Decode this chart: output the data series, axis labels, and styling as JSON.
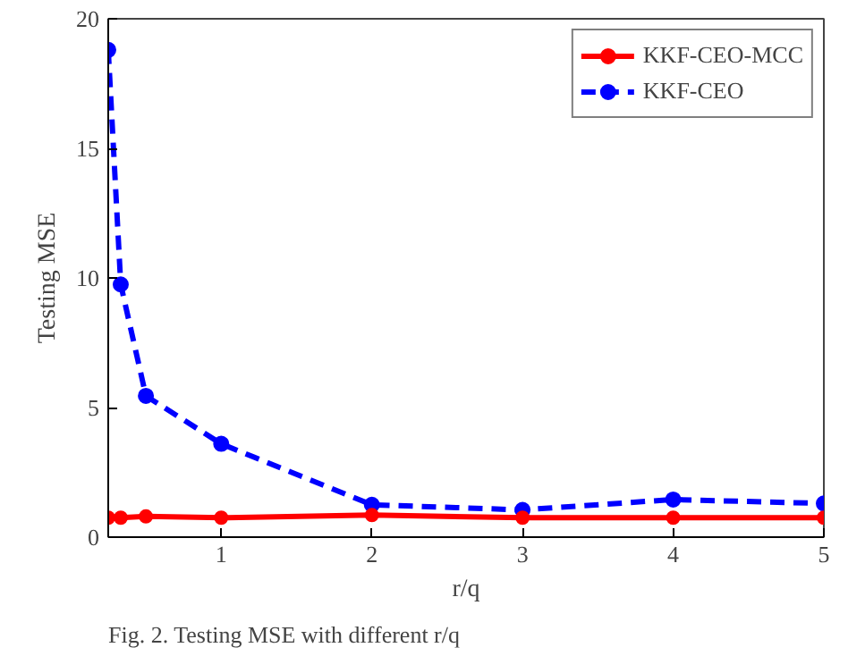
{
  "chart_data": {
    "type": "line",
    "xlabel": "r/q",
    "ylabel": "Testing MSE",
    "annotations": [
      "Fig. 2.   Testing MSE with different r/q"
    ],
    "x": [
      0.25,
      0.333,
      0.5,
      1,
      2,
      3,
      4,
      5
    ],
    "series": [
      {
        "name": "KKF-CEO-MCC",
        "color": "#ff0000",
        "values": [
          0.75,
          0.75,
          0.8,
          0.75,
          0.85,
          0.75,
          0.75,
          0.75
        ],
        "line_style": "solid",
        "marker": "circle"
      },
      {
        "name": "KKF-CEO",
        "color": "#0000ff",
        "values": [
          18.8,
          9.75,
          5.45,
          3.6,
          1.25,
          1.05,
          1.45,
          1.3
        ],
        "line_style": "dashed",
        "marker": "circle"
      }
    ],
    "xlim": [
      0.25,
      5
    ],
    "ylim": [
      0,
      20
    ],
    "xticks": [
      1,
      2,
      3,
      4,
      5
    ],
    "yticks": [
      0,
      5,
      10,
      15,
      20
    ],
    "grid": false,
    "legend": "top right"
  }
}
